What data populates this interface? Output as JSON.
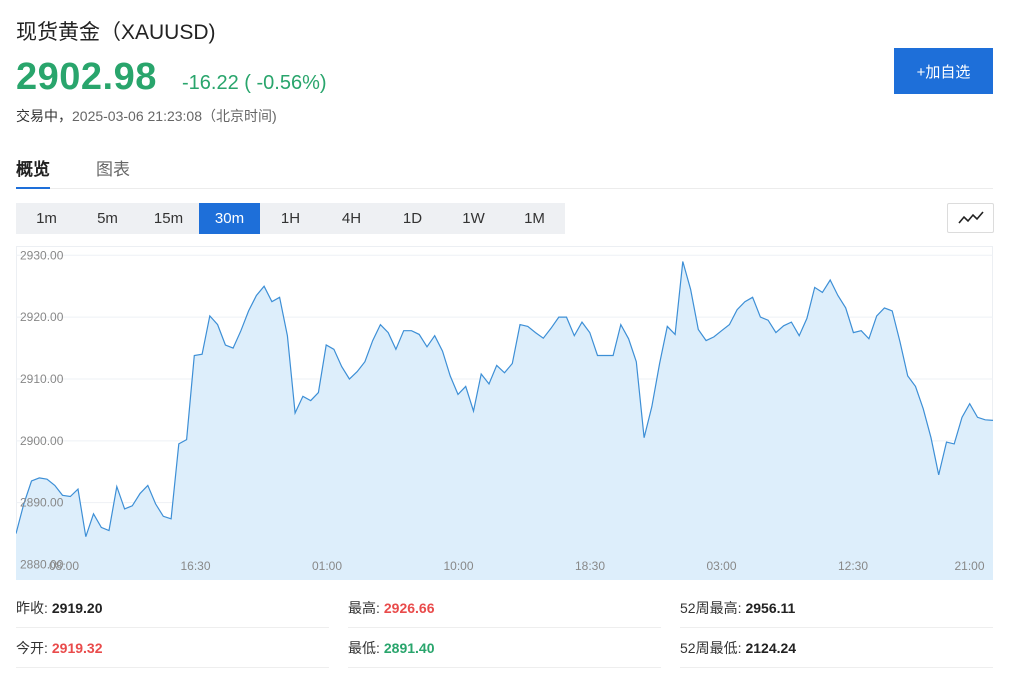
{
  "header": {
    "title": "现货黄金（XAUUSD)",
    "price": "2902.98",
    "change": "-16.22 ( -0.56%)",
    "status_label": "交易中，",
    "timestamp": "2025-03-06 21:23:08（北京时间)",
    "add_button": "+加自选"
  },
  "tabs": [
    {
      "label": "概览",
      "active": true
    },
    {
      "label": "图表",
      "active": false
    }
  ],
  "periods": [
    {
      "label": "1m",
      "active": false
    },
    {
      "label": "5m",
      "active": false
    },
    {
      "label": "15m",
      "active": false
    },
    {
      "label": "30m",
      "active": true
    },
    {
      "label": "1H",
      "active": false
    },
    {
      "label": "4H",
      "active": false
    },
    {
      "label": "1D",
      "active": false
    },
    {
      "label": "1W",
      "active": false
    },
    {
      "label": "1M",
      "active": false
    }
  ],
  "chart_data": {
    "type": "area",
    "y_ticks": [
      "2880.00",
      "2890.00",
      "2900.00",
      "2910.00",
      "2920.00",
      "2930.00"
    ],
    "ylim": [
      2877.5,
      2931.5
    ],
    "x_ticks": [
      "08:00",
      "16:30",
      "01:00",
      "10:00",
      "18:30",
      "03:00",
      "12:30",
      "21:00"
    ],
    "values": [
      2885.0,
      2889.8,
      2893.5,
      2894.0,
      2893.8,
      2892.8,
      2891.2,
      2891.0,
      2892.2,
      2884.5,
      2888.2,
      2886.0,
      2885.5,
      2892.6,
      2889.0,
      2889.5,
      2891.5,
      2892.8,
      2889.8,
      2887.8,
      2887.4,
      2899.5,
      2900.2,
      2913.8,
      2914.0,
      2920.2,
      2918.8,
      2915.5,
      2915.0,
      2917.8,
      2921.0,
      2923.5,
      2925.0,
      2922.5,
      2923.2,
      2917.0,
      2904.5,
      2907.2,
      2906.5,
      2907.8,
      2915.5,
      2914.8,
      2912.0,
      2910.0,
      2911.2,
      2912.8,
      2916.2,
      2918.8,
      2917.5,
      2914.8,
      2917.8,
      2917.8,
      2917.2,
      2915.2,
      2917.0,
      2914.5,
      2910.5,
      2907.5,
      2908.8,
      2904.8,
      2910.8,
      2909.2,
      2912.2,
      2911.0,
      2912.5,
      2918.8,
      2918.5,
      2917.5,
      2916.6,
      2918.2,
      2920.0,
      2920.0,
      2917.0,
      2919.2,
      2917.5,
      2913.8,
      2913.8,
      2913.8,
      2918.8,
      2916.5,
      2912.8,
      2900.5,
      2905.5,
      2912.5,
      2918.5,
      2917.2,
      2929.0,
      2924.5,
      2918.0,
      2916.2,
      2916.8,
      2917.8,
      2918.8,
      2921.2,
      2922.5,
      2923.2,
      2920.0,
      2919.5,
      2917.5,
      2918.6,
      2919.2,
      2917.0,
      2919.8,
      2924.8,
      2924.0,
      2926.0,
      2923.5,
      2921.5,
      2917.5,
      2917.8,
      2916.5,
      2920.2,
      2921.5,
      2921.0,
      2916.0,
      2910.5,
      2908.8,
      2905.2,
      2900.5,
      2894.5,
      2899.8,
      2899.5,
      2903.8,
      2906.0,
      2903.8,
      2903.4,
      2903.3
    ]
  },
  "stats": {
    "prev_close": {
      "label": "昨收:",
      "value": "2919.20"
    },
    "open": {
      "label": "今开:",
      "value": "2919.32"
    },
    "high": {
      "label": "最高:",
      "value": "2926.66"
    },
    "low": {
      "label": "最低:",
      "value": "2891.40"
    },
    "wk52_high": {
      "label": "52周最高:",
      "value": "2956.11"
    },
    "wk52_low": {
      "label": "52周最低:",
      "value": "2124.24"
    }
  },
  "colors": {
    "accent": "#1e6fd9",
    "down": "#29a56c",
    "up": "#e94b4b",
    "chart_line": "#3d8fd6",
    "chart_fill": "#ddeefb"
  },
  "icons": {
    "chart_type": "line-chart-icon"
  }
}
